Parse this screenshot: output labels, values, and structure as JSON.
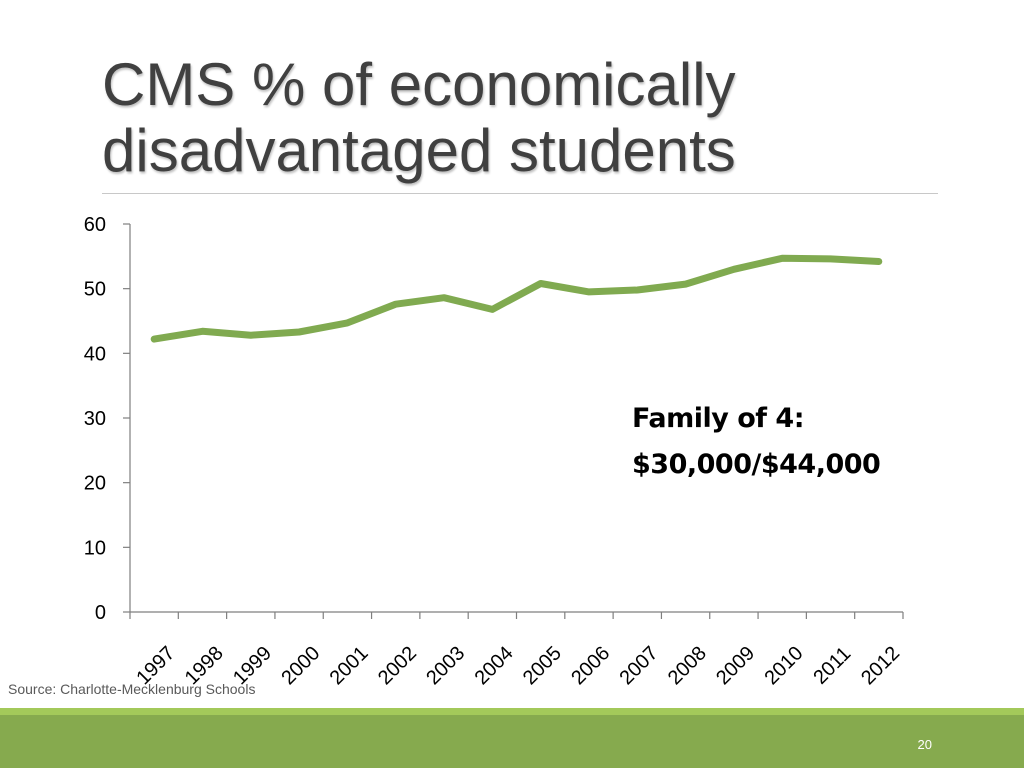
{
  "slide": {
    "title": "CMS % of economically disadvantaged students",
    "annotation_line1": "Family of 4:",
    "annotation_line2": "$30,000/$44,000",
    "source": "Source: Charlotte-Mecklenburg Schools",
    "page_number": "20"
  },
  "colors": {
    "line": "#80aa50",
    "axis": "#7f7f7f",
    "title": "#404040",
    "footer_band": "#86aa4e",
    "footer_stripe": "#a3c95a"
  },
  "chart_data": {
    "type": "line",
    "title": "",
    "xlabel": "",
    "ylabel": "",
    "categories": [
      "1997",
      "1998",
      "1999",
      "2000",
      "2001",
      "2002",
      "2003",
      "2004",
      "2005",
      "2006",
      "2007",
      "2008",
      "2009",
      "2010",
      "2011",
      "2012"
    ],
    "series": [
      {
        "values": [
          42.2,
          43.4,
          42.8,
          43.3,
          44.7,
          47.6,
          48.6,
          46.8,
          50.8,
          49.5,
          49.8,
          50.7,
          53.0,
          54.7,
          54.6,
          54.2
        ]
      }
    ],
    "ylim": [
      0,
      60
    ],
    "yticks": [
      "0",
      "10",
      "20",
      "30",
      "40",
      "50",
      "60"
    ],
    "grid": false,
    "legend": "none"
  }
}
